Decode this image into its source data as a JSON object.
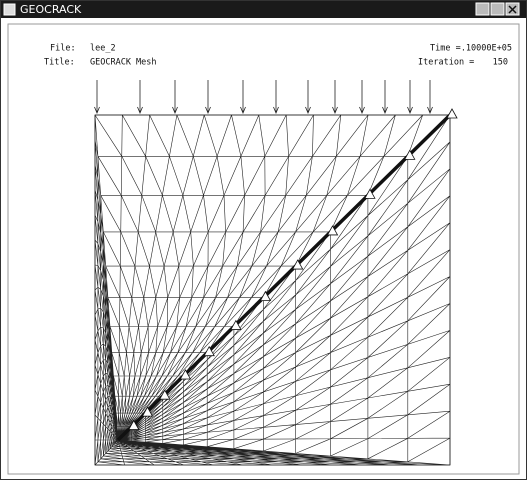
{
  "window": {
    "title": "GEOCRACK"
  },
  "header": {
    "file_label": "File:",
    "file": "lee_2",
    "title_label": "Title:",
    "title": "GEOCRACK Mesh",
    "time_label": "Time =",
    "time": ".10000E+05",
    "iteration_label": "Iteration =",
    "iteration": "150"
  }
}
